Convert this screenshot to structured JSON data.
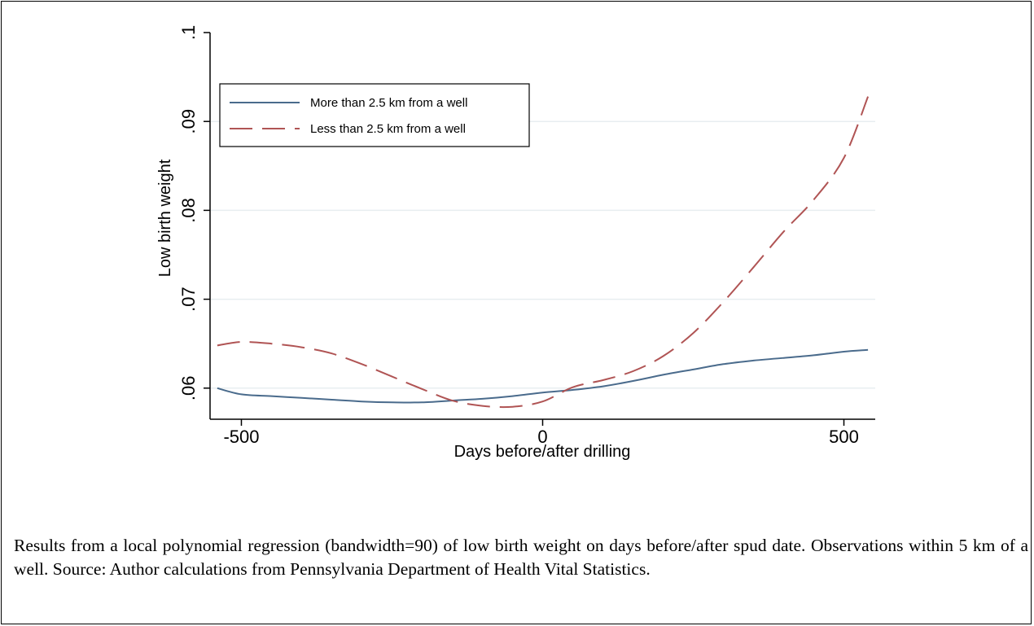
{
  "chart_data": {
    "type": "line",
    "title": "",
    "xlabel": "Days before/after drilling",
    "ylabel": "Low birth weight",
    "xlim": [
      -552,
      552
    ],
    "ylim": [
      0.0565,
      0.1
    ],
    "x_ticks": [
      -500,
      0,
      500
    ],
    "x_tick_labels": [
      "-500",
      "0",
      "500"
    ],
    "y_ticks": [
      0.06,
      0.07,
      0.08,
      0.09,
      0.1
    ],
    "y_tick_labels": [
      ".06",
      ".07",
      ".08",
      ".09",
      ".1"
    ],
    "grid": true,
    "legend": {
      "placement": "top-left",
      "entries": [
        "More than 2.5 km from a well",
        "Less than 2.5 km from a well"
      ]
    },
    "series": [
      {
        "name": "More than 2.5 km from a well",
        "color": "#4a6b8c",
        "dash": "solid",
        "x": [
          -540,
          -500,
          -450,
          -400,
          -350,
          -300,
          -250,
          -200,
          -150,
          -100,
          -50,
          0,
          50,
          100,
          150,
          200,
          250,
          300,
          350,
          400,
          450,
          500,
          540
        ],
        "y": [
          0.06,
          0.0593,
          0.0591,
          0.0589,
          0.0587,
          0.0585,
          0.0584,
          0.0584,
          0.0586,
          0.0588,
          0.0591,
          0.0595,
          0.0598,
          0.0602,
          0.0608,
          0.0615,
          0.0621,
          0.0627,
          0.0631,
          0.0634,
          0.0637,
          0.0641,
          0.0643
        ]
      },
      {
        "name": "Less than 2.5 km from a well",
        "color": "#b05454",
        "dash": "long-dash",
        "x": [
          -540,
          -500,
          -450,
          -400,
          -350,
          -300,
          -250,
          -200,
          -150,
          -100,
          -50,
          0,
          50,
          100,
          150,
          200,
          250,
          300,
          350,
          400,
          450,
          500,
          540
        ],
        "y": [
          0.0648,
          0.0652,
          0.065,
          0.0646,
          0.0639,
          0.0627,
          0.0613,
          0.0599,
          0.0586,
          0.058,
          0.0579,
          0.0585,
          0.0601,
          0.0609,
          0.0619,
          0.0636,
          0.0662,
          0.0697,
          0.0736,
          0.0776,
          0.0812,
          0.0859,
          0.0928
        ]
      }
    ]
  },
  "caption": "Results from a local polynomial regression (bandwidth=90) of low birth weight on days before/after spud date. Observations within 5 km of a well. Source: Author calculations from Pennsylvania Department of Health Vital Statistics."
}
